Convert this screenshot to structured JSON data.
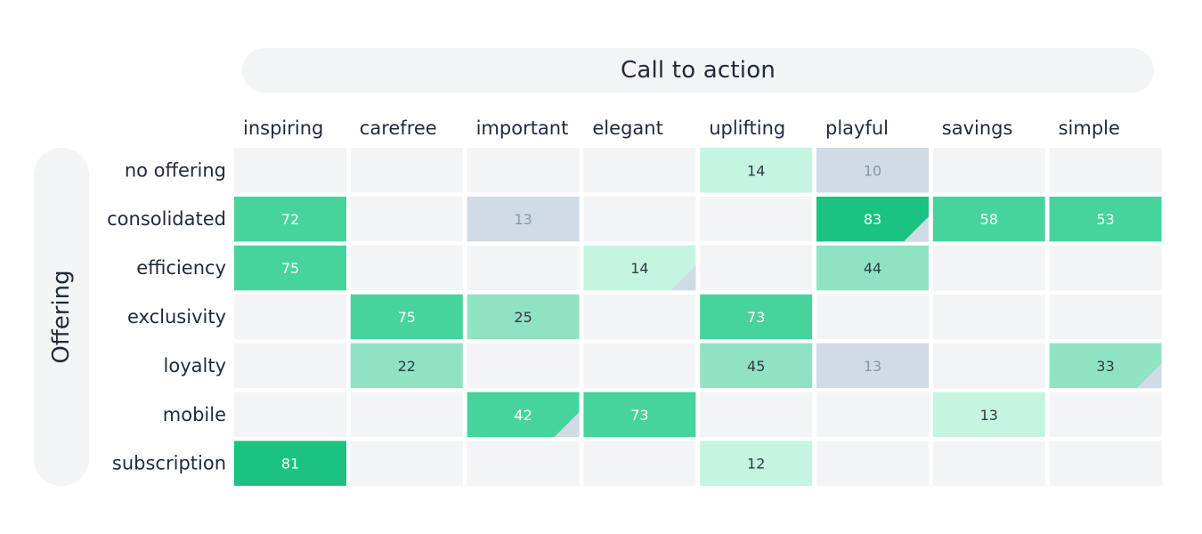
{
  "column_group_title": "Call to action",
  "row_group_title": "Offering",
  "colors": {
    "empty": "#f3f4f6",
    "neutral": "#d1dbe6",
    "neutral_text": "#8b97a6",
    "green_light": "#c5f5e1",
    "green_mid": "#8fe3c3",
    "green_strong": "#47d49c",
    "green_max": "#1bc381",
    "dark_text": "#2e3a48",
    "light_text": "#ffffff"
  },
  "chart_data": {
    "type": "heatmap",
    "columns": [
      "inspiring",
      "carefree",
      "important",
      "elegant",
      "uplifting",
      "playful",
      "savings",
      "simple"
    ],
    "rows": [
      "no offering",
      "consolidated",
      "efficiency",
      "exclusivity",
      "loyalty",
      "mobile",
      "subscription"
    ],
    "cells": [
      {
        "row": "no offering",
        "col": "uplifting",
        "value": 14,
        "style": "green_light"
      },
      {
        "row": "no offering",
        "col": "playful",
        "value": 10,
        "style": "neutral"
      },
      {
        "row": "consolidated",
        "col": "inspiring",
        "value": 72,
        "style": "green_strong"
      },
      {
        "row": "consolidated",
        "col": "important",
        "value": 13,
        "style": "neutral"
      },
      {
        "row": "consolidated",
        "col": "playful",
        "value": 83,
        "style": "green_max",
        "corner_marker": true
      },
      {
        "row": "consolidated",
        "col": "savings",
        "value": 58,
        "style": "green_strong"
      },
      {
        "row": "consolidated",
        "col": "simple",
        "value": 53,
        "style": "green_strong"
      },
      {
        "row": "efficiency",
        "col": "inspiring",
        "value": 75,
        "style": "green_strong"
      },
      {
        "row": "efficiency",
        "col": "elegant",
        "value": 14,
        "style": "green_light",
        "corner_marker": true
      },
      {
        "row": "efficiency",
        "col": "playful",
        "value": 44,
        "style": "green_mid"
      },
      {
        "row": "exclusivity",
        "col": "carefree",
        "value": 75,
        "style": "green_strong"
      },
      {
        "row": "exclusivity",
        "col": "important",
        "value": 25,
        "style": "green_mid"
      },
      {
        "row": "exclusivity",
        "col": "uplifting",
        "value": 73,
        "style": "green_strong"
      },
      {
        "row": "loyalty",
        "col": "carefree",
        "value": 22,
        "style": "green_mid"
      },
      {
        "row": "loyalty",
        "col": "uplifting",
        "value": 45,
        "style": "green_mid"
      },
      {
        "row": "loyalty",
        "col": "playful",
        "value": 13,
        "style": "neutral"
      },
      {
        "row": "loyalty",
        "col": "simple",
        "value": 33,
        "style": "green_mid",
        "corner_marker": true
      },
      {
        "row": "mobile",
        "col": "important",
        "value": 42,
        "style": "green_strong",
        "corner_marker": true
      },
      {
        "row": "mobile",
        "col": "elegant",
        "value": 73,
        "style": "green_strong"
      },
      {
        "row": "mobile",
        "col": "savings",
        "value": 13,
        "style": "green_light"
      },
      {
        "row": "subscription",
        "col": "inspiring",
        "value": 81,
        "style": "green_max"
      },
      {
        "row": "subscription",
        "col": "uplifting",
        "value": 12,
        "style": "green_light"
      }
    ]
  }
}
